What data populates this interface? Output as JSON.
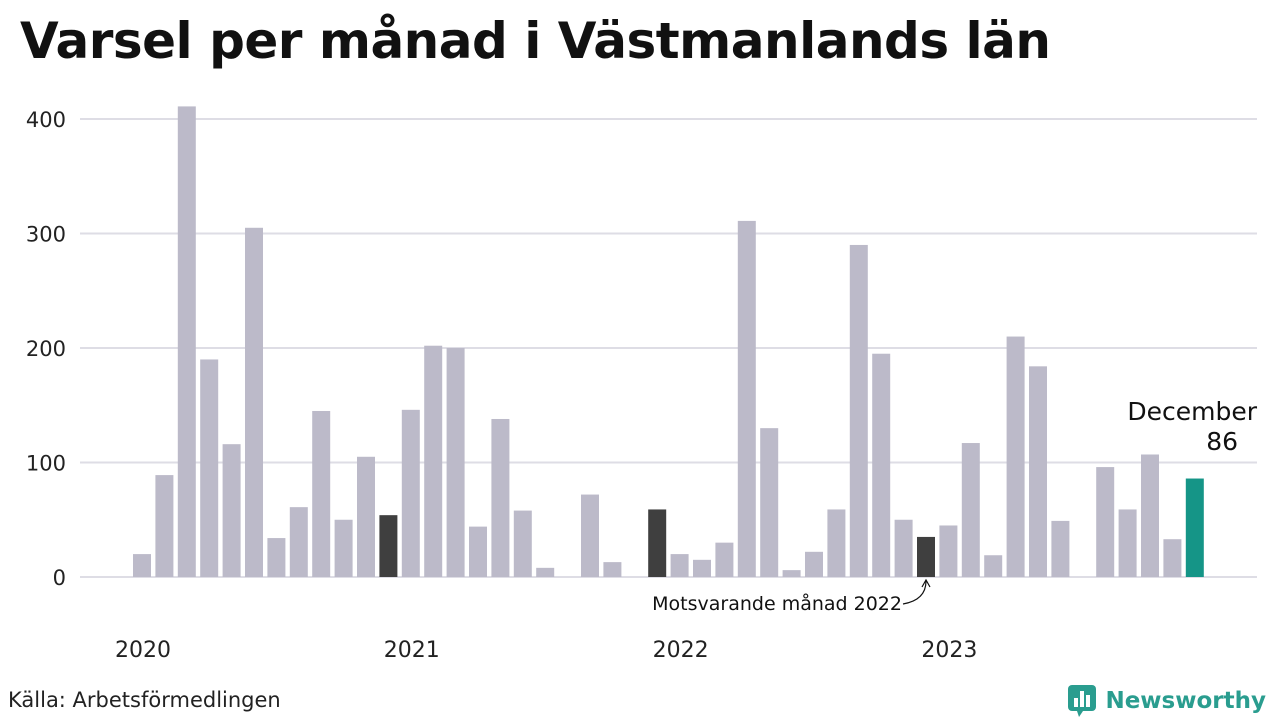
{
  "title": "Varsel per månad i Västmanlands län",
  "source": "Källa: Arbetsförmedlingen",
  "brand": {
    "name": "Newsworthy",
    "icon": "bar-chart-logo-icon"
  },
  "colors": {
    "bar": "#bcbac9",
    "comparison": "#3f3f3f",
    "highlight": "#159587",
    "grid": "#dedde5",
    "brand": "#2a9d8f"
  },
  "chart_data": {
    "type": "bar",
    "title": "Varsel per månad i Västmanlands län",
    "xlabel": "",
    "ylabel": "",
    "ylim": [
      0,
      400
    ],
    "yticks": [
      0,
      100,
      200,
      300,
      400
    ],
    "grid": true,
    "year_labels": [
      {
        "label": "2020",
        "month_index": 0
      },
      {
        "label": "2021",
        "month_index": 12
      },
      {
        "label": "2022",
        "month_index": 24
      },
      {
        "label": "2023",
        "month_index": 36
      }
    ],
    "values": [
      20,
      89,
      411,
      190,
      116,
      305,
      34,
      61,
      145,
      50,
      105,
      54,
      146,
      202,
      200,
      44,
      138,
      58,
      8,
      0,
      72,
      13,
      0,
      59,
      20,
      15,
      30,
      311,
      130,
      6,
      22,
      59,
      290,
      195,
      50,
      35,
      45,
      117,
      19,
      210,
      184,
      49,
      0,
      96,
      59,
      107,
      33,
      86
    ],
    "comparison_months": [
      11,
      23,
      35
    ],
    "highlight_month": 47,
    "highlight_label": {
      "month": "December",
      "value": "86"
    },
    "annotation": {
      "text": "Motsvarande månad 2022",
      "month_index": 35
    }
  }
}
